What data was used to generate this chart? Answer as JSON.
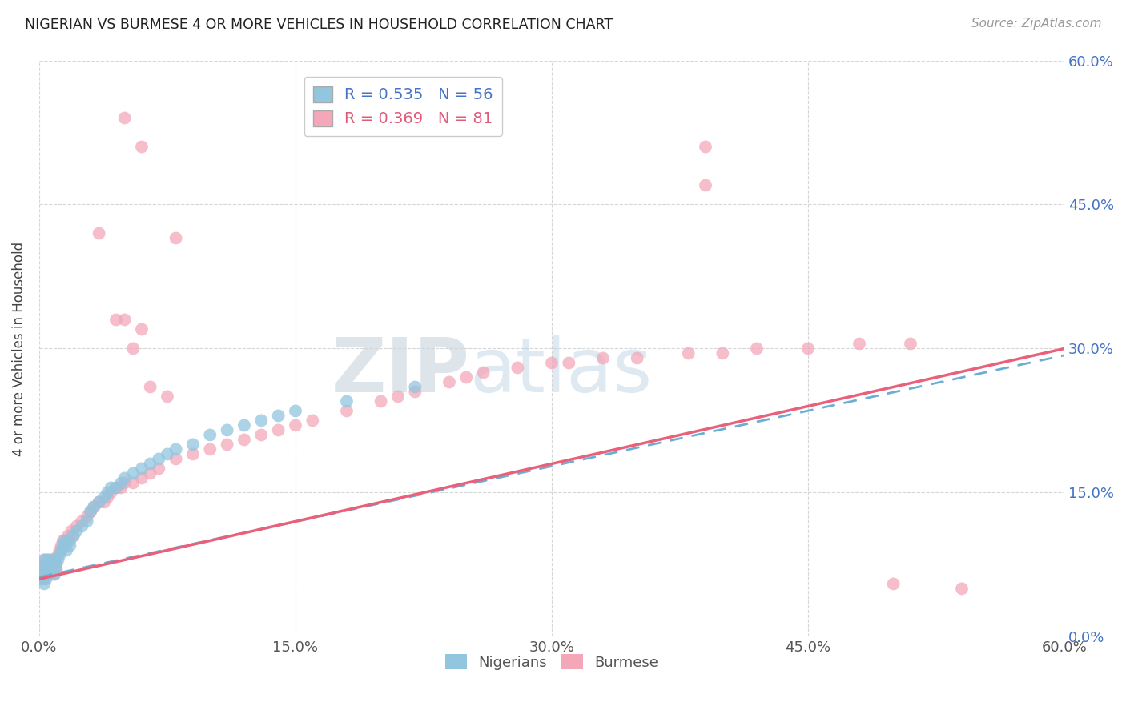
{
  "title": "NIGERIAN VS BURMESE 4 OR MORE VEHICLES IN HOUSEHOLD CORRELATION CHART",
  "source": "Source: ZipAtlas.com",
  "ylabel": "4 or more Vehicles in Household",
  "xlim": [
    0.0,
    0.6
  ],
  "ylim": [
    0.0,
    0.6
  ],
  "tick_vals": [
    0.0,
    0.15,
    0.3,
    0.45,
    0.6
  ],
  "watermark_zip": "ZIP",
  "watermark_atlas": "atlas",
  "nigerian_color": "#92c5de",
  "burmese_color": "#f4a7b9",
  "nigerian_line_color": "#6aaed6",
  "burmese_line_color": "#e8607a",
  "nigerian_R": 0.535,
  "nigerian_N": 56,
  "burmese_R": 0.369,
  "burmese_N": 81,
  "background_color": "#ffffff",
  "grid_color": "#cccccc",
  "right_tick_color": "#4472c4",
  "nigerian_x": [
    0.001,
    0.002,
    0.002,
    0.003,
    0.003,
    0.004,
    0.004,
    0.005,
    0.005,
    0.005,
    0.006,
    0.006,
    0.007,
    0.007,
    0.008,
    0.008,
    0.009,
    0.009,
    0.01,
    0.01,
    0.011,
    0.012,
    0.013,
    0.014,
    0.015,
    0.016,
    0.017,
    0.018,
    0.02,
    0.022,
    0.025,
    0.028,
    0.03,
    0.032,
    0.035,
    0.038,
    0.04,
    0.042,
    0.045,
    0.048,
    0.05,
    0.055,
    0.06,
    0.065,
    0.07,
    0.075,
    0.08,
    0.09,
    0.1,
    0.11,
    0.12,
    0.13,
    0.14,
    0.15,
    0.18,
    0.22
  ],
  "nigerian_y": [
    0.06,
    0.065,
    0.07,
    0.055,
    0.08,
    0.06,
    0.075,
    0.065,
    0.07,
    0.08,
    0.07,
    0.075,
    0.065,
    0.08,
    0.07,
    0.075,
    0.065,
    0.08,
    0.07,
    0.075,
    0.08,
    0.085,
    0.09,
    0.095,
    0.1,
    0.09,
    0.1,
    0.095,
    0.105,
    0.11,
    0.115,
    0.12,
    0.13,
    0.135,
    0.14,
    0.145,
    0.15,
    0.155,
    0.155,
    0.16,
    0.165,
    0.17,
    0.175,
    0.18,
    0.185,
    0.19,
    0.195,
    0.2,
    0.21,
    0.215,
    0.22,
    0.225,
    0.23,
    0.235,
    0.245,
    0.26
  ],
  "burmese_x": [
    0.001,
    0.001,
    0.002,
    0.002,
    0.003,
    0.003,
    0.004,
    0.004,
    0.005,
    0.005,
    0.006,
    0.006,
    0.007,
    0.007,
    0.008,
    0.008,
    0.009,
    0.009,
    0.01,
    0.01,
    0.011,
    0.012,
    0.013,
    0.014,
    0.015,
    0.016,
    0.017,
    0.018,
    0.019,
    0.02,
    0.022,
    0.025,
    0.028,
    0.03,
    0.032,
    0.035,
    0.038,
    0.04,
    0.042,
    0.045,
    0.048,
    0.05,
    0.055,
    0.06,
    0.065,
    0.07,
    0.08,
    0.09,
    0.1,
    0.11,
    0.12,
    0.13,
    0.14,
    0.15,
    0.16,
    0.18,
    0.2,
    0.21,
    0.22,
    0.24,
    0.25,
    0.26,
    0.28,
    0.3,
    0.31,
    0.33,
    0.35,
    0.38,
    0.4,
    0.42,
    0.45,
    0.48,
    0.51,
    0.05,
    0.06,
    0.045,
    0.055,
    0.065,
    0.075,
    0.54
  ],
  "burmese_y": [
    0.06,
    0.07,
    0.065,
    0.075,
    0.06,
    0.08,
    0.065,
    0.075,
    0.07,
    0.08,
    0.07,
    0.075,
    0.065,
    0.08,
    0.07,
    0.075,
    0.065,
    0.08,
    0.07,
    0.075,
    0.085,
    0.09,
    0.095,
    0.1,
    0.095,
    0.1,
    0.105,
    0.1,
    0.11,
    0.105,
    0.115,
    0.12,
    0.125,
    0.13,
    0.135,
    0.14,
    0.14,
    0.145,
    0.15,
    0.155,
    0.155,
    0.16,
    0.16,
    0.165,
    0.17,
    0.175,
    0.185,
    0.19,
    0.195,
    0.2,
    0.205,
    0.21,
    0.215,
    0.22,
    0.225,
    0.235,
    0.245,
    0.25,
    0.255,
    0.265,
    0.27,
    0.275,
    0.28,
    0.285,
    0.285,
    0.29,
    0.29,
    0.295,
    0.295,
    0.3,
    0.3,
    0.305,
    0.305,
    0.33,
    0.32,
    0.33,
    0.3,
    0.26,
    0.25,
    0.05
  ],
  "burmese_outliers_x": [
    0.035,
    0.06,
    0.05,
    0.08,
    0.39,
    0.39,
    0.5
  ],
  "burmese_outliers_y": [
    0.42,
    0.51,
    0.54,
    0.415,
    0.47,
    0.51,
    0.055
  ]
}
